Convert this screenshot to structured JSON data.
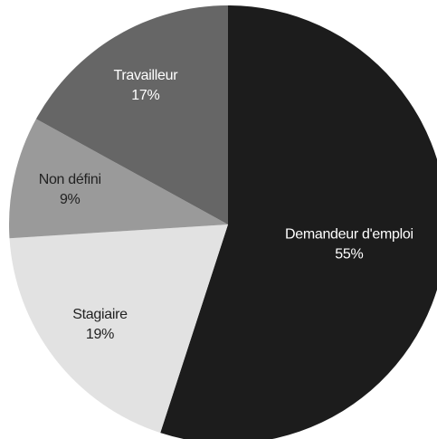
{
  "chart_data": {
    "type": "pie",
    "categories": [
      "Demandeur d'emploi",
      "Stagiaire",
      "Non défini",
      "Travailleur"
    ],
    "values": [
      55,
      19,
      9,
      17
    ],
    "value_labels": [
      "55%",
      "19%",
      "9%",
      "17%"
    ],
    "colors": [
      "#1c1c1c",
      "#e2e2e2",
      "#9a9a9a",
      "#666666"
    ]
  }
}
